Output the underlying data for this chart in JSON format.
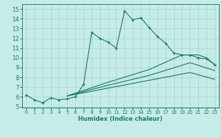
{
  "xlabel": "Humidex (Indice chaleur)",
  "background_color": "#c5ece6",
  "line_color": "#1e7a6e",
  "grid_color": "#aad8d0",
  "xlim": [
    -0.5,
    23.5
  ],
  "ylim": [
    4.9,
    15.5
  ],
  "xtick_labels": [
    "0",
    "1",
    "2",
    "3",
    "4",
    "5",
    "6",
    "7",
    "8",
    "9",
    "10",
    "11",
    "12",
    "13",
    "14",
    "15",
    "16",
    "17",
    "18",
    "19",
    "20",
    "21",
    "22",
    "23"
  ],
  "xticks": [
    0,
    1,
    2,
    3,
    4,
    5,
    6,
    7,
    8,
    9,
    10,
    11,
    12,
    13,
    14,
    15,
    16,
    17,
    18,
    19,
    20,
    21,
    22,
    23
  ],
  "yticks": [
    5,
    6,
    7,
    8,
    9,
    10,
    11,
    12,
    13,
    14,
    15
  ],
  "main_x": [
    0,
    1,
    2,
    3,
    4,
    5,
    6,
    7,
    8,
    9,
    10,
    11,
    12,
    13,
    14,
    15,
    16,
    17,
    18,
    19,
    20,
    21,
    22,
    23
  ],
  "main_y": [
    6.2,
    5.7,
    5.4,
    5.9,
    5.7,
    5.8,
    6.0,
    7.3,
    12.6,
    12.0,
    11.6,
    11.0,
    14.8,
    13.9,
    14.1,
    13.1,
    12.2,
    11.5,
    10.5,
    10.3,
    10.3,
    10.0,
    9.9,
    9.3
  ],
  "extra_lines": [
    {
      "x": [
        5,
        10,
        15,
        19,
        21,
        22,
        23
      ],
      "y": [
        6.1,
        7.5,
        8.8,
        10.3,
        10.3,
        10.0,
        9.3
      ]
    },
    {
      "x": [
        5,
        10,
        15,
        20,
        23
      ],
      "y": [
        6.1,
        7.2,
        8.2,
        9.5,
        8.7
      ]
    },
    {
      "x": [
        5,
        10,
        15,
        20,
        23
      ],
      "y": [
        6.1,
        6.9,
        7.7,
        8.5,
        7.8
      ]
    }
  ]
}
